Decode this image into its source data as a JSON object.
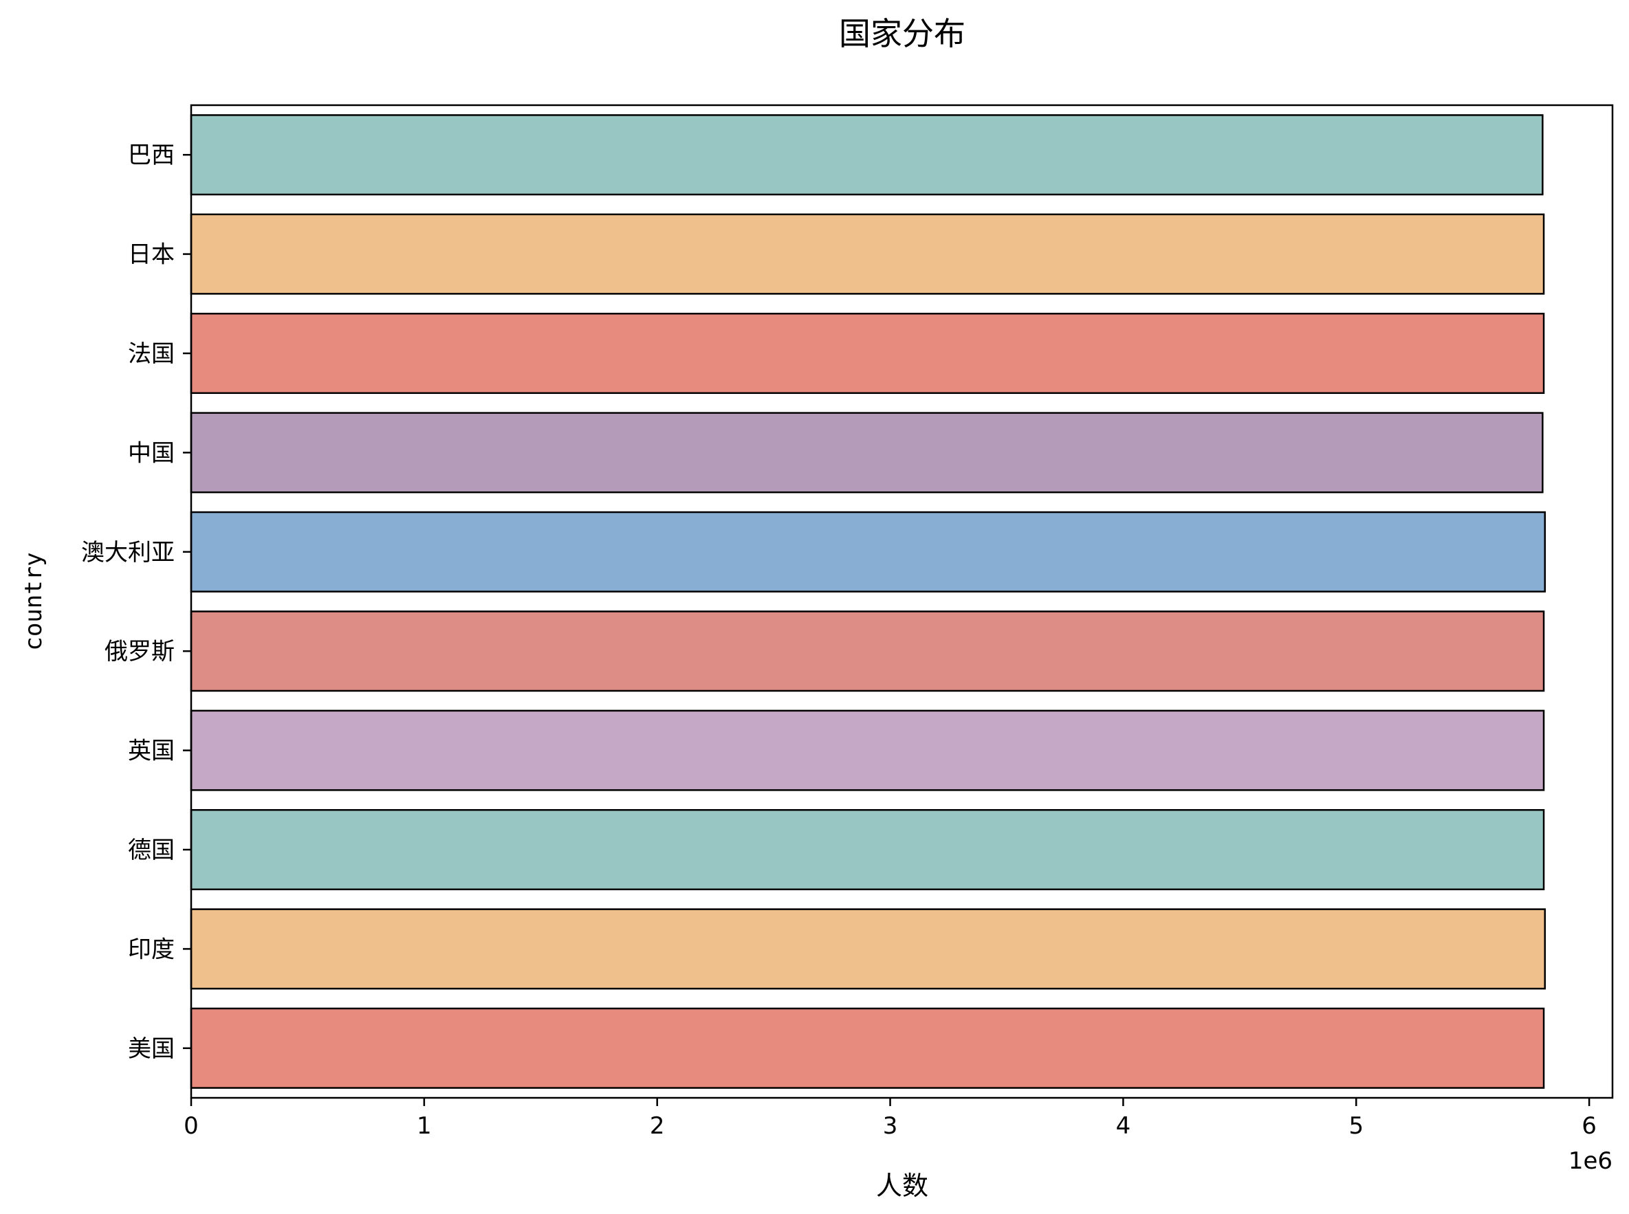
{
  "chart_data": {
    "type": "bar",
    "orientation": "horizontal",
    "title": "国家分布",
    "xlabel": "人数",
    "ylabel": "country",
    "x_offset_label": "1e6",
    "xlim": [
      0,
      6.1
    ],
    "xticks": [
      0,
      1,
      2,
      3,
      4,
      5,
      6
    ],
    "categories": [
      "巴西",
      "日本",
      "法国",
      "中国",
      "澳大利亚",
      "俄罗斯",
      "英国",
      "德国",
      "印度",
      "美国"
    ],
    "values": [
      5.8,
      5.805,
      5.805,
      5.8,
      5.81,
      5.805,
      5.805,
      5.805,
      5.81,
      5.805
    ],
    "colors": [
      "#98c6c3",
      "#efbf8c",
      "#e88b7f",
      "#b39bb9",
      "#89aed3",
      "#dd8d85",
      "#c5a8c5",
      "#98c6c3",
      "#efbf8c",
      "#e88b7f"
    ],
    "grid": false,
    "legend": false
  }
}
